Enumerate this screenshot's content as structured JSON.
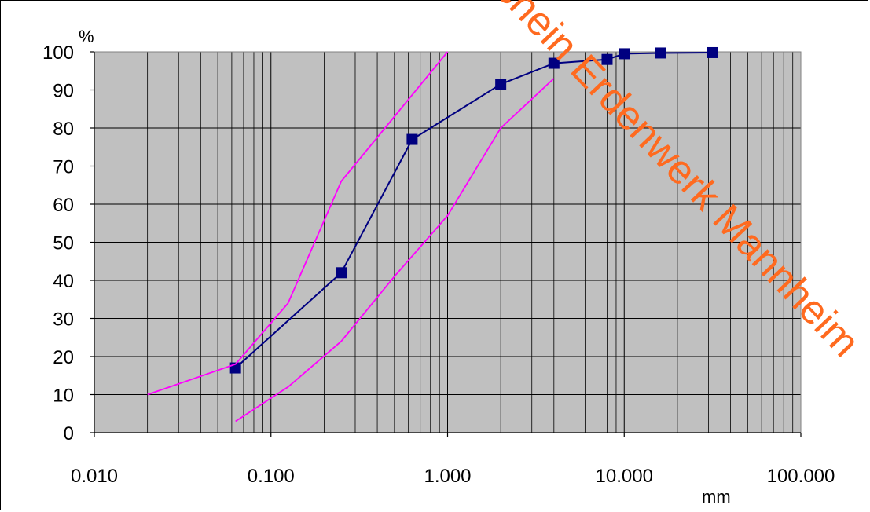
{
  "chart_data": {
    "type": "line",
    "x_scale": "log",
    "xlim": [
      0.01,
      100
    ],
    "ylim": [
      0,
      100
    ],
    "y_ticks": [
      0,
      10,
      20,
      30,
      40,
      50,
      60,
      70,
      80,
      90,
      100
    ],
    "x_ticks": [
      {
        "value": 0.01,
        "label": "0.010"
      },
      {
        "value": 0.1,
        "label": "0.100"
      },
      {
        "value": 1,
        "label": "1.000"
      },
      {
        "value": 10,
        "label": "10.000"
      },
      {
        "value": 100,
        "label": "100.000"
      }
    ],
    "ylabel": "%",
    "xlabel": "mm",
    "grid": true,
    "plot_background": "#c0c0c0",
    "series": [
      {
        "role": "measured",
        "color": "#000080",
        "marker": "square",
        "x": [
          0.063,
          0.25,
          0.63,
          2,
          4,
          8,
          10,
          16,
          31.5
        ],
        "y": [
          17,
          42,
          77,
          91.5,
          97,
          98,
          99.5,
          99.7,
          99.8
        ]
      },
      {
        "role": "upper-bound",
        "color": "#ff00ff",
        "marker": "none",
        "x": [
          0.02,
          0.063,
          0.125,
          0.25,
          0.5,
          1
        ],
        "y": [
          10,
          18,
          34,
          66,
          83,
          100
        ]
      },
      {
        "role": "lower-bound",
        "color": "#ff00ff",
        "marker": "none",
        "x": [
          0.063,
          0.125,
          0.25,
          0.5,
          1,
          2,
          4
        ],
        "y": [
          3,
          12,
          24,
          41,
          57,
          80,
          93
        ]
      }
    ]
  },
  "watermark": {
    "text": "eschein Erdenwerk Mannheim",
    "color": "#ff6a1f"
  }
}
